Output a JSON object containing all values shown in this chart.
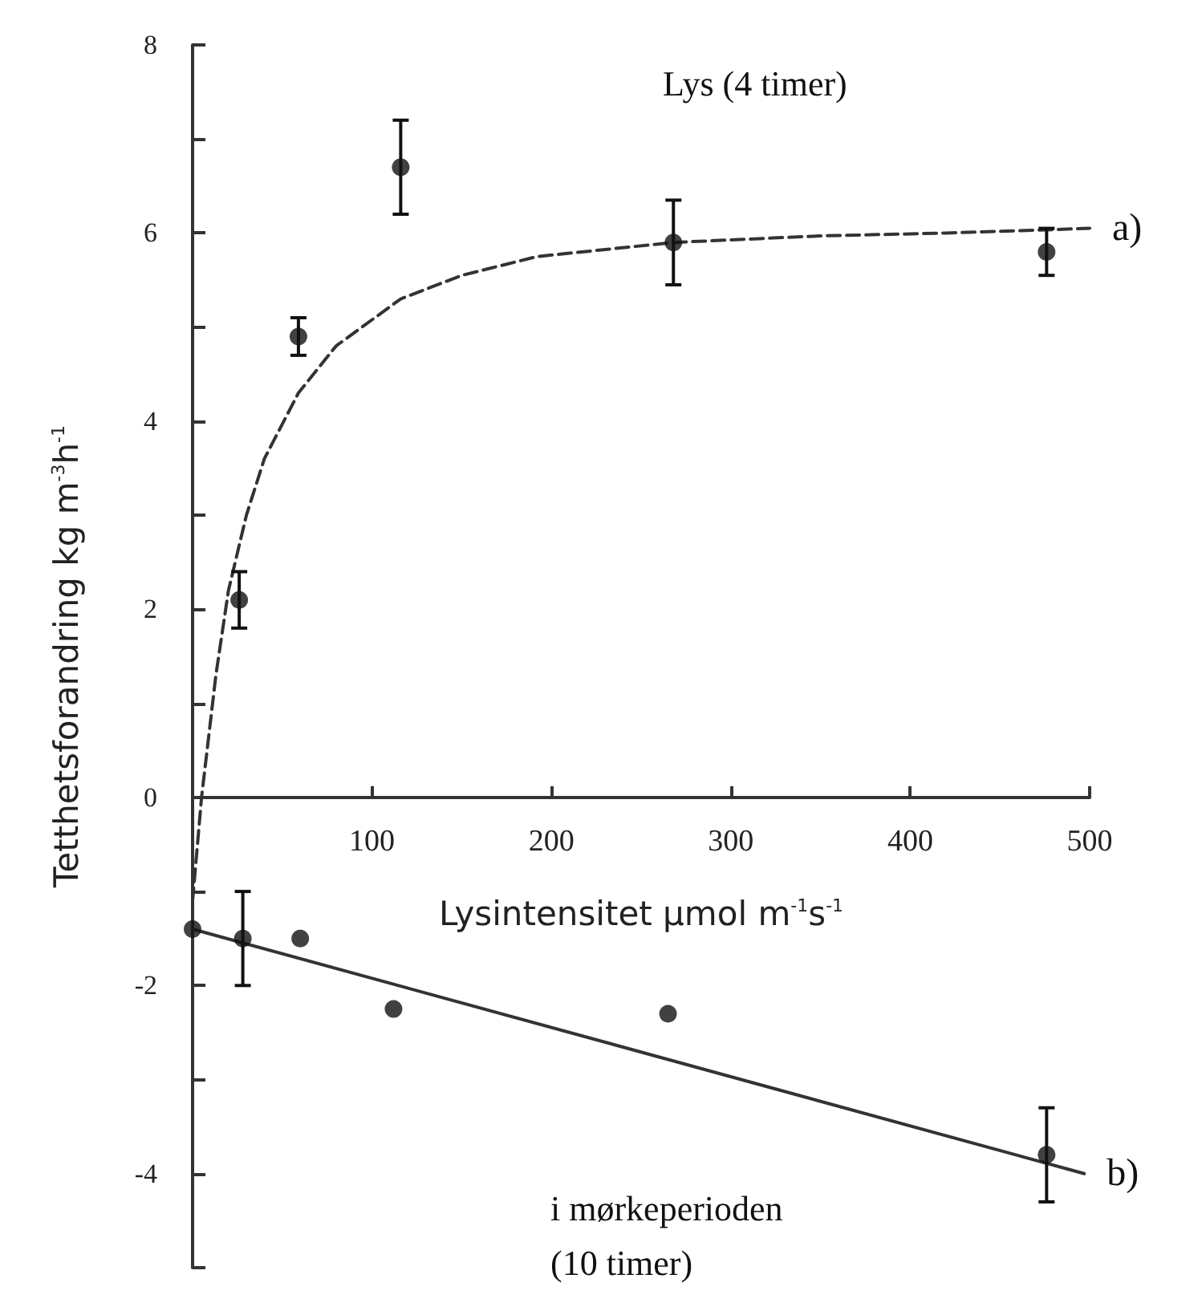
{
  "chart_data": {
    "type": "scatter",
    "title": "Lys (4 timer)",
    "xlabel": "Lysintensitet µmol m$^{-1}$s$^{-1}$",
    "ylabel": "Tetthetsforandring kg m$^{-3}$h$^{-1}$",
    "annotations": [
      "i mørkeperioden\n(10 timer)"
    ],
    "xlim": [
      0,
      500
    ],
    "xticks": [
      100,
      200,
      300,
      400,
      500
    ],
    "ylim": [
      -5,
      8
    ],
    "yticks": [
      8,
      {
        "value": 7,
        "label": null
      },
      6,
      {
        "value": 5,
        "label": null
      },
      4,
      {
        "value": 3,
        "label": null
      },
      2,
      {
        "value": 1,
        "label": null
      },
      0,
      {
        "value": -1,
        "label": null
      },
      -2,
      {
        "value": -3,
        "label": null
      },
      -4,
      {
        "value": -5,
        "label": null
      }
    ],
    "grid": false,
    "marker": "circle",
    "series": [
      {
        "type": "scatter",
        "color": "#111111",
        "x": [
          26,
          59,
          116,
          268,
          476
        ],
        "values": [
          2.1,
          4.9,
          6.7,
          5.9,
          5.8
        ],
        "errors": [
          0.3,
          0.2,
          0.5,
          0.45,
          0.25
        ]
      },
      {
        "type": "line",
        "name": "a)",
        "color": "#333333",
        "line_style": "dashed",
        "marker": "none",
        "x": [
          0,
          5,
          13,
          20,
          30,
          40,
          59,
          80,
          116,
          150,
          192,
          268,
          350,
          420,
          500
        ],
        "values": [
          -1.1,
          0,
          1.3,
          2.2,
          3.0,
          3.6,
          4.3,
          4.8,
          5.3,
          5.55,
          5.75,
          5.9,
          5.97,
          6.0,
          6.05
        ]
      },
      {
        "type": "scatter",
        "color": "#111111",
        "x": [
          0,
          28,
          60,
          112,
          265,
          476
        ],
        "values": [
          -1.4,
          -1.5,
          -1.5,
          -2.25,
          -2.3,
          -3.8
        ],
        "errors": [
          null,
          0.5,
          null,
          null,
          null,
          0.5
        ]
      },
      {
        "type": "line",
        "name": "b)",
        "color": "#333333",
        "line_style": "solid",
        "marker": "none",
        "x": [
          0,
          497
        ],
        "values": [
          -1.4,
          -4.0
        ]
      }
    ]
  }
}
